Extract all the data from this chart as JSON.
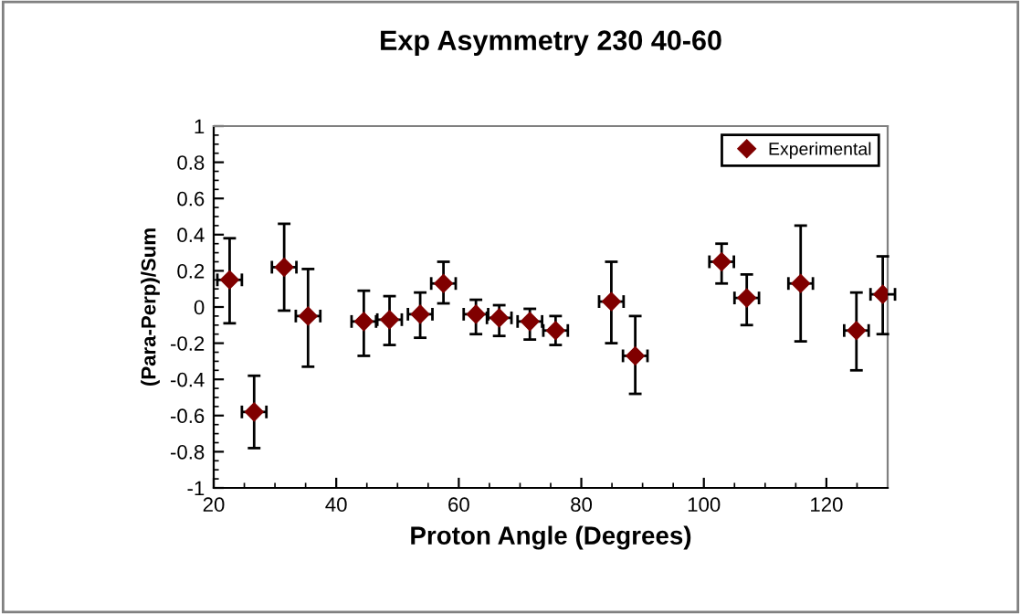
{
  "chart_data": {
    "type": "scatter",
    "title": "Exp Asymmetry 230 40-60",
    "xlabel": "Proton Angle (Degrees)",
    "ylabel": "(Para-Perp)/Sum",
    "x": [
      22.6,
      26.6,
      31.5,
      35.4,
      44.5,
      48.7,
      53.7,
      57.5,
      62.8,
      66.6,
      71.6,
      75.8,
      84.9,
      88.8,
      102.9,
      107,
      115.8,
      124.9,
      129.2
    ],
    "series": [
      {
        "name": "Experimental",
        "color": "#800000",
        "values": [
          0.15,
          -0.58,
          0.22,
          -0.05,
          -0.08,
          -0.07,
          -0.04,
          0.13,
          -0.04,
          -0.06,
          -0.08,
          -0.13,
          0.03,
          -0.27,
          0.25,
          0.05,
          0.13,
          -0.13,
          0.07
        ],
        "errors": [
          [
            -0.09,
            0.38
          ],
          [
            -0.78,
            -0.38
          ],
          [
            -0.02,
            0.46
          ],
          [
            -0.33,
            0.21
          ],
          [
            -0.27,
            0.09
          ],
          [
            -0.21,
            0.06
          ],
          [
            -0.17,
            0.08
          ],
          [
            0.02,
            0.25
          ],
          [
            -0.15,
            0.04
          ],
          [
            -0.16,
            0.01
          ],
          [
            -0.18,
            -0.01
          ],
          [
            -0.21,
            -0.05
          ],
          [
            -0.2,
            0.25
          ],
          [
            -0.48,
            -0.05
          ],
          [
            0.13,
            0.35
          ],
          [
            -0.1,
            0.18
          ],
          [
            -0.19,
            0.45
          ],
          [
            -0.35,
            0.08
          ],
          [
            -0.15,
            0.28
          ]
        ],
        "xerrors": [
          2,
          2,
          2,
          2,
          2,
          2,
          2,
          2,
          2,
          2,
          2,
          2,
          2,
          2,
          2,
          2,
          2,
          2,
          2
        ]
      }
    ],
    "xlim": [
      20,
      130
    ],
    "xticks": [
      20,
      40,
      60,
      80,
      100,
      120
    ],
    "ylim": [
      -1,
      1
    ],
    "yticks": [
      -1,
      -0.8,
      -0.6,
      -0.4,
      -0.2,
      0,
      0.2,
      0.4,
      0.6,
      0.8,
      1
    ],
    "marker": "diamond",
    "legend": "top right",
    "grid": false
  }
}
